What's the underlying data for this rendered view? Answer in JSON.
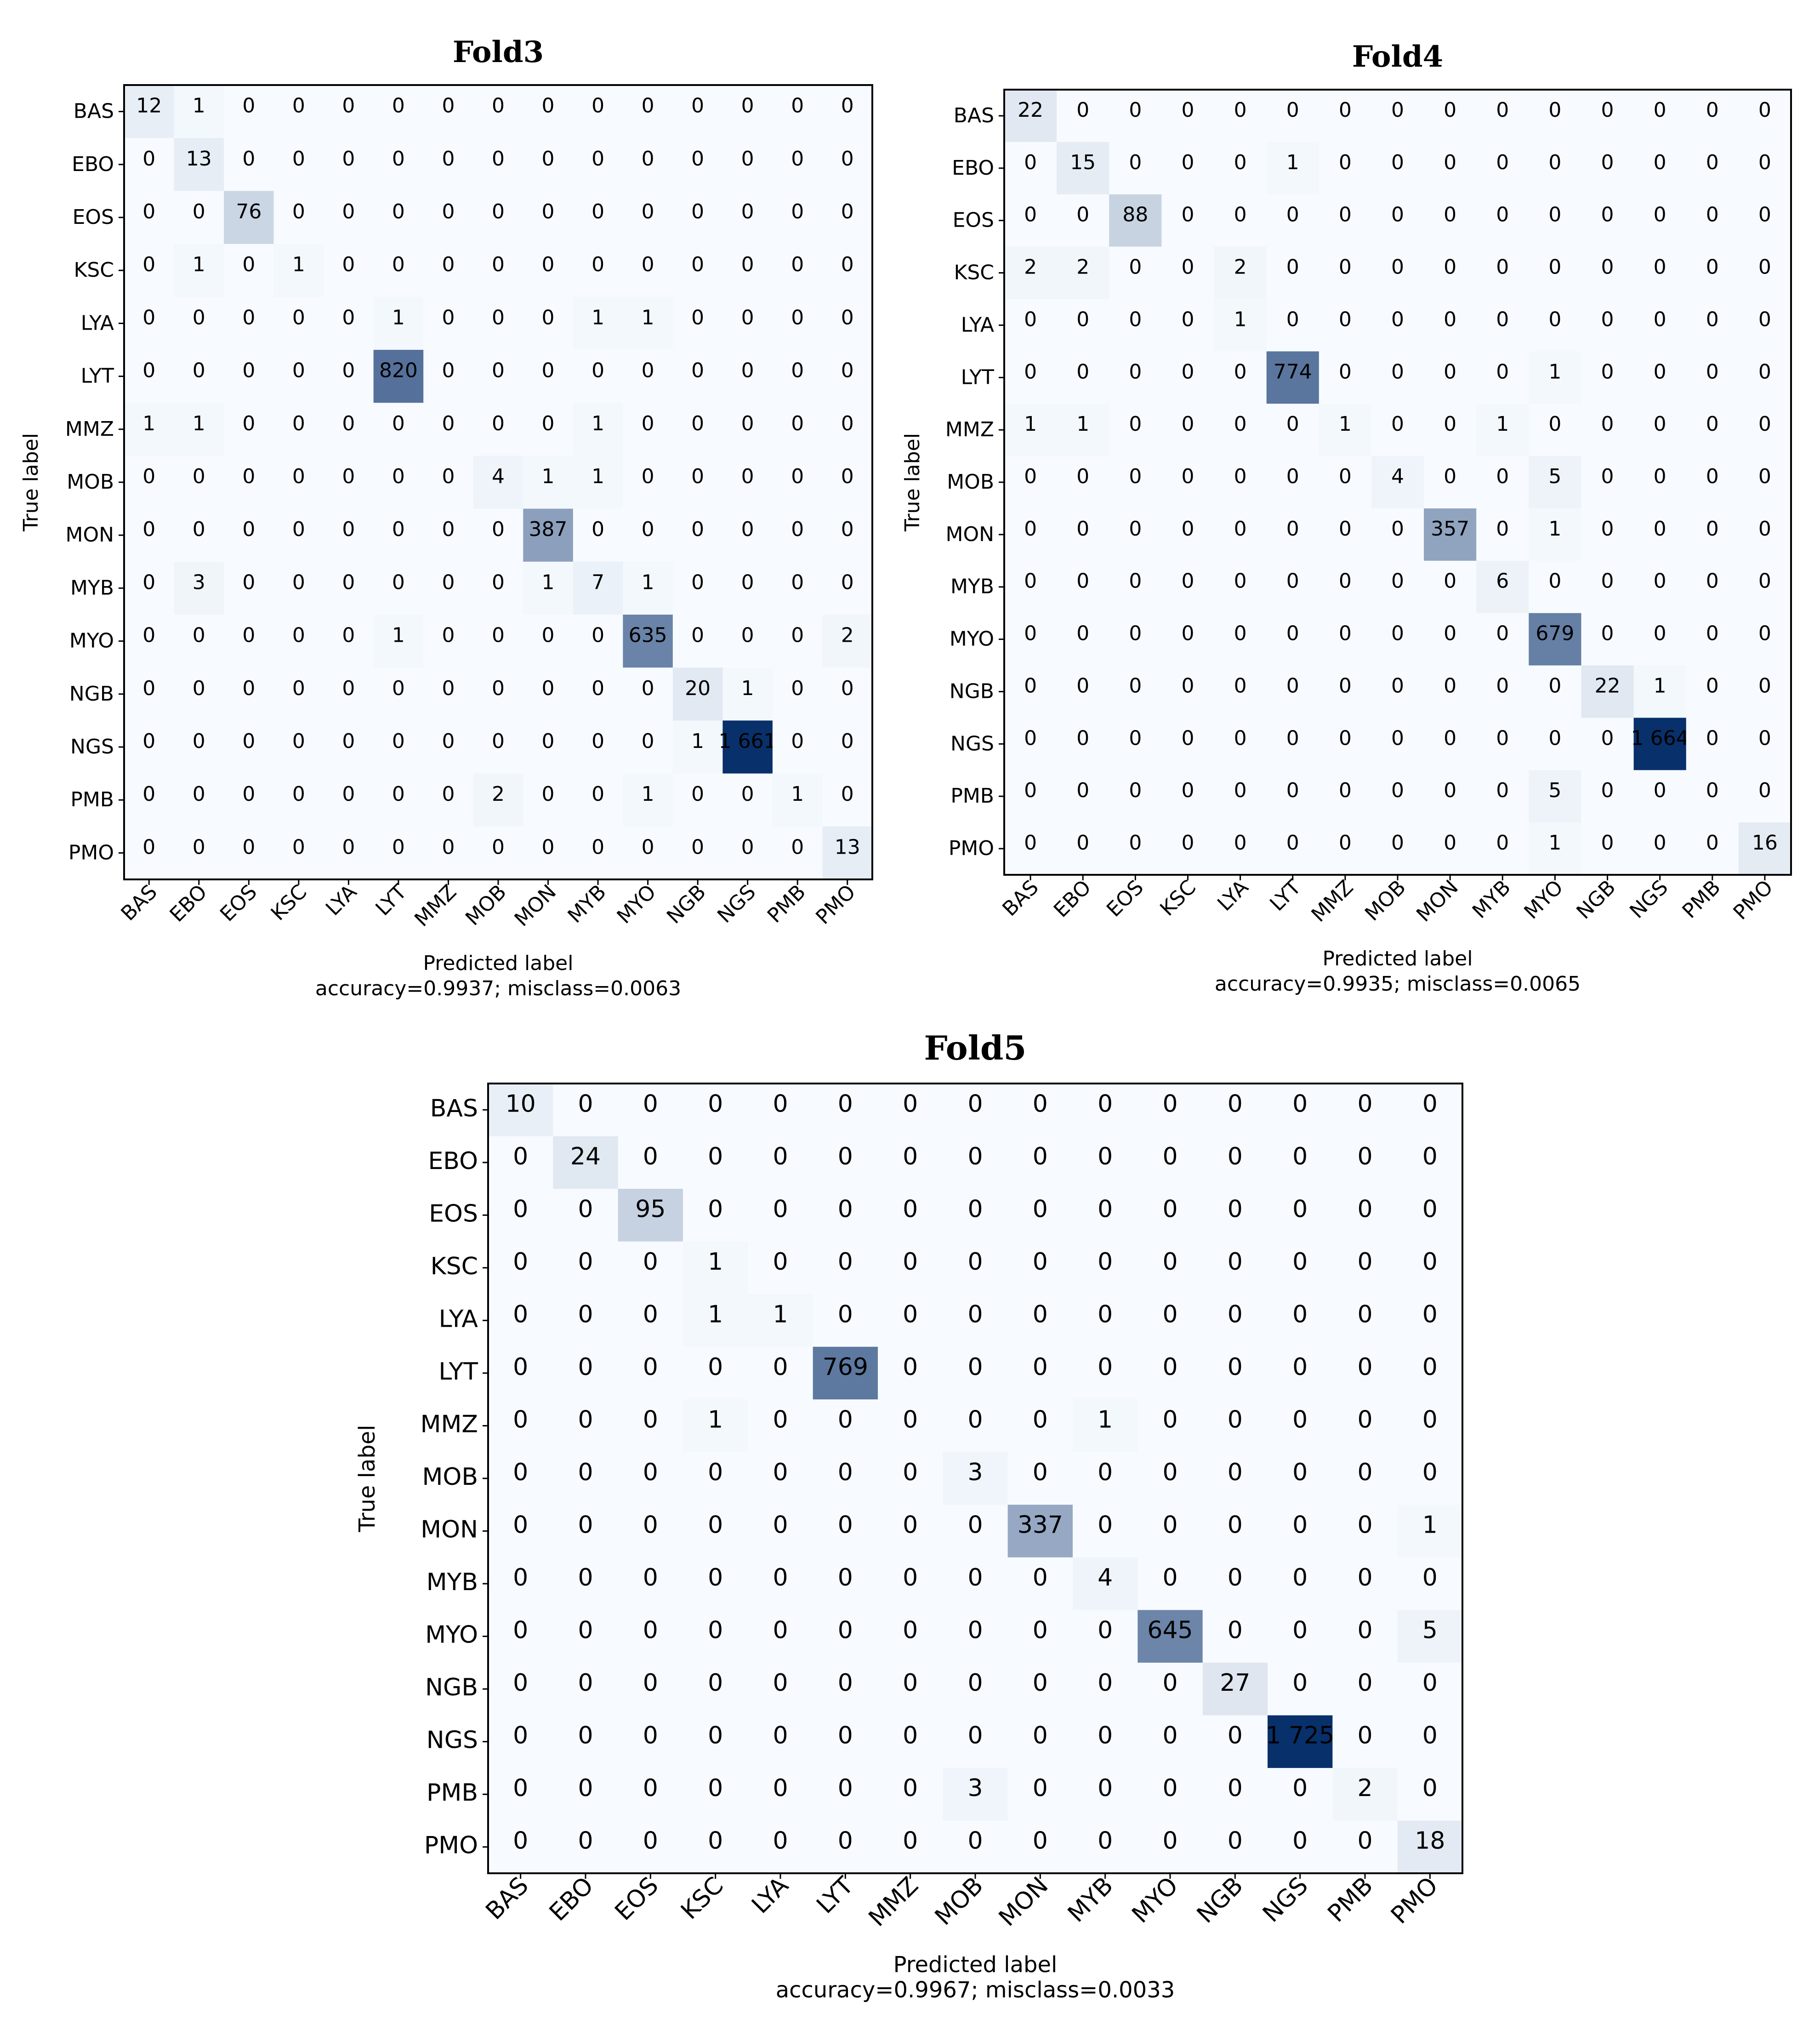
{
  "chart_data": [
    {
      "type": "heatmap",
      "title": "Fold3",
      "xlabel": "Predicted label",
      "ylabel": "True label",
      "caption": "accuracy=0.9937; misclass=0.0063",
      "colormap": "Blues",
      "color_low": "#f7fbff",
      "color_high": "#08306b",
      "labels": [
        "BAS",
        "EBO",
        "EOS",
        "KSC",
        "LYA",
        "LYT",
        "MMZ",
        "MOB",
        "MON",
        "MYB",
        "MYO",
        "NGB",
        "NGS",
        "PMB",
        "PMO"
      ],
      "matrix": [
        [
          12,
          1,
          0,
          0,
          0,
          0,
          0,
          0,
          0,
          0,
          0,
          0,
          0,
          0,
          0
        ],
        [
          0,
          13,
          0,
          0,
          0,
          0,
          0,
          0,
          0,
          0,
          0,
          0,
          0,
          0,
          0
        ],
        [
          0,
          0,
          76,
          0,
          0,
          0,
          0,
          0,
          0,
          0,
          0,
          0,
          0,
          0,
          0
        ],
        [
          0,
          1,
          0,
          1,
          0,
          0,
          0,
          0,
          0,
          0,
          0,
          0,
          0,
          0,
          0
        ],
        [
          0,
          0,
          0,
          0,
          0,
          1,
          0,
          0,
          0,
          1,
          1,
          0,
          0,
          0,
          0
        ],
        [
          0,
          0,
          0,
          0,
          0,
          820,
          0,
          0,
          0,
          0,
          0,
          0,
          0,
          0,
          0
        ],
        [
          1,
          1,
          0,
          0,
          0,
          0,
          0,
          0,
          0,
          1,
          0,
          0,
          0,
          0,
          0
        ],
        [
          0,
          0,
          0,
          0,
          0,
          0,
          0,
          4,
          1,
          1,
          0,
          0,
          0,
          0,
          0
        ],
        [
          0,
          0,
          0,
          0,
          0,
          0,
          0,
          0,
          387,
          0,
          0,
          0,
          0,
          0,
          0
        ],
        [
          0,
          3,
          0,
          0,
          0,
          0,
          0,
          0,
          1,
          7,
          1,
          0,
          0,
          0,
          0
        ],
        [
          0,
          0,
          0,
          0,
          0,
          1,
          0,
          0,
          0,
          0,
          635,
          0,
          0,
          0,
          2
        ],
        [
          0,
          0,
          0,
          0,
          0,
          0,
          0,
          0,
          0,
          0,
          0,
          20,
          1,
          0,
          0
        ],
        [
          0,
          0,
          0,
          0,
          0,
          0,
          0,
          0,
          0,
          0,
          0,
          1,
          1661,
          0,
          0
        ],
        [
          0,
          0,
          0,
          0,
          0,
          0,
          0,
          2,
          0,
          0,
          1,
          0,
          0,
          1,
          0
        ],
        [
          0,
          0,
          0,
          0,
          0,
          0,
          0,
          0,
          0,
          0,
          0,
          0,
          0,
          0,
          13
        ]
      ]
    },
    {
      "type": "heatmap",
      "title": "Fold4",
      "xlabel": "Predicted label",
      "ylabel": "True label",
      "caption": "accuracy=0.9935; misclass=0.0065",
      "colormap": "Blues",
      "color_low": "#f7fbff",
      "color_high": "#08306b",
      "labels": [
        "BAS",
        "EBO",
        "EOS",
        "KSC",
        "LYA",
        "LYT",
        "MMZ",
        "MOB",
        "MON",
        "MYB",
        "MYO",
        "NGB",
        "NGS",
        "PMB",
        "PMO"
      ],
      "matrix": [
        [
          22,
          0,
          0,
          0,
          0,
          0,
          0,
          0,
          0,
          0,
          0,
          0,
          0,
          0,
          0
        ],
        [
          0,
          15,
          0,
          0,
          0,
          1,
          0,
          0,
          0,
          0,
          0,
          0,
          0,
          0,
          0
        ],
        [
          0,
          0,
          88,
          0,
          0,
          0,
          0,
          0,
          0,
          0,
          0,
          0,
          0,
          0,
          0
        ],
        [
          2,
          2,
          0,
          0,
          2,
          0,
          0,
          0,
          0,
          0,
          0,
          0,
          0,
          0,
          0
        ],
        [
          0,
          0,
          0,
          0,
          1,
          0,
          0,
          0,
          0,
          0,
          0,
          0,
          0,
          0,
          0
        ],
        [
          0,
          0,
          0,
          0,
          0,
          774,
          0,
          0,
          0,
          0,
          1,
          0,
          0,
          0,
          0
        ],
        [
          1,
          1,
          0,
          0,
          0,
          0,
          1,
          0,
          0,
          1,
          0,
          0,
          0,
          0,
          0
        ],
        [
          0,
          0,
          0,
          0,
          0,
          0,
          0,
          4,
          0,
          0,
          5,
          0,
          0,
          0,
          0
        ],
        [
          0,
          0,
          0,
          0,
          0,
          0,
          0,
          0,
          357,
          0,
          1,
          0,
          0,
          0,
          0
        ],
        [
          0,
          0,
          0,
          0,
          0,
          0,
          0,
          0,
          0,
          6,
          0,
          0,
          0,
          0,
          0
        ],
        [
          0,
          0,
          0,
          0,
          0,
          0,
          0,
          0,
          0,
          0,
          679,
          0,
          0,
          0,
          0
        ],
        [
          0,
          0,
          0,
          0,
          0,
          0,
          0,
          0,
          0,
          0,
          0,
          22,
          1,
          0,
          0
        ],
        [
          0,
          0,
          0,
          0,
          0,
          0,
          0,
          0,
          0,
          0,
          0,
          0,
          1664,
          0,
          0
        ],
        [
          0,
          0,
          0,
          0,
          0,
          0,
          0,
          0,
          0,
          0,
          5,
          0,
          0,
          0,
          0
        ],
        [
          0,
          0,
          0,
          0,
          0,
          0,
          0,
          0,
          0,
          0,
          1,
          0,
          0,
          0,
          16
        ]
      ]
    },
    {
      "type": "heatmap",
      "title": "Fold5",
      "xlabel": "Predicted label",
      "ylabel": "True label",
      "caption": "accuracy=0.9967; misclass=0.0033",
      "colormap": "Blues",
      "color_low": "#f7fbff",
      "color_high": "#08306b",
      "labels": [
        "BAS",
        "EBO",
        "EOS",
        "KSC",
        "LYA",
        "LYT",
        "MMZ",
        "MOB",
        "MON",
        "MYB",
        "MYO",
        "NGB",
        "NGS",
        "PMB",
        "PMO"
      ],
      "matrix": [
        [
          10,
          0,
          0,
          0,
          0,
          0,
          0,
          0,
          0,
          0,
          0,
          0,
          0,
          0,
          0
        ],
        [
          0,
          24,
          0,
          0,
          0,
          0,
          0,
          0,
          0,
          0,
          0,
          0,
          0,
          0,
          0
        ],
        [
          0,
          0,
          95,
          0,
          0,
          0,
          0,
          0,
          0,
          0,
          0,
          0,
          0,
          0,
          0
        ],
        [
          0,
          0,
          0,
          1,
          0,
          0,
          0,
          0,
          0,
          0,
          0,
          0,
          0,
          0,
          0
        ],
        [
          0,
          0,
          0,
          1,
          1,
          0,
          0,
          0,
          0,
          0,
          0,
          0,
          0,
          0,
          0
        ],
        [
          0,
          0,
          0,
          0,
          0,
          769,
          0,
          0,
          0,
          0,
          0,
          0,
          0,
          0,
          0
        ],
        [
          0,
          0,
          0,
          1,
          0,
          0,
          0,
          0,
          0,
          1,
          0,
          0,
          0,
          0,
          0
        ],
        [
          0,
          0,
          0,
          0,
          0,
          0,
          0,
          3,
          0,
          0,
          0,
          0,
          0,
          0,
          0
        ],
        [
          0,
          0,
          0,
          0,
          0,
          0,
          0,
          0,
          337,
          0,
          0,
          0,
          0,
          0,
          1
        ],
        [
          0,
          0,
          0,
          0,
          0,
          0,
          0,
          0,
          0,
          4,
          0,
          0,
          0,
          0,
          0
        ],
        [
          0,
          0,
          0,
          0,
          0,
          0,
          0,
          0,
          0,
          0,
          645,
          0,
          0,
          0,
          5
        ],
        [
          0,
          0,
          0,
          0,
          0,
          0,
          0,
          0,
          0,
          0,
          0,
          27,
          0,
          0,
          0
        ],
        [
          0,
          0,
          0,
          0,
          0,
          0,
          0,
          0,
          0,
          0,
          0,
          0,
          1725,
          0,
          0
        ],
        [
          0,
          0,
          0,
          0,
          0,
          0,
          0,
          3,
          0,
          0,
          0,
          0,
          0,
          2,
          0
        ],
        [
          0,
          0,
          0,
          0,
          0,
          0,
          0,
          0,
          0,
          0,
          0,
          0,
          0,
          0,
          18
        ]
      ]
    }
  ]
}
